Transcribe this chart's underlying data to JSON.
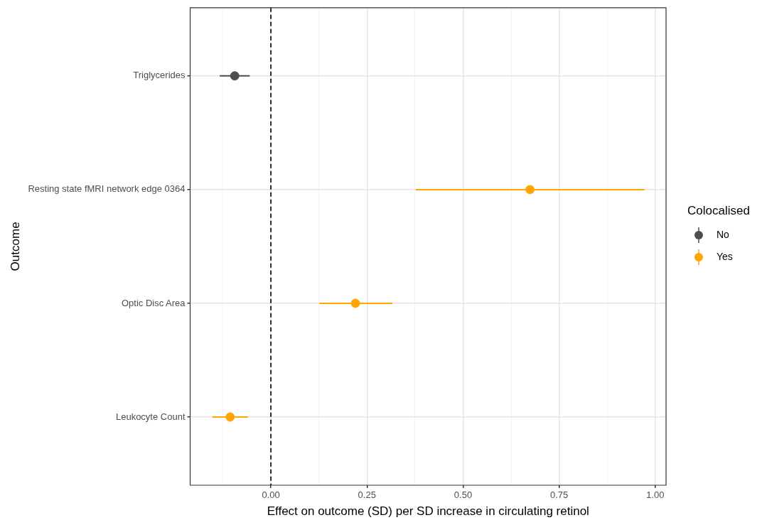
{
  "chart_data": {
    "type": "scatter",
    "orientation": "horizontal",
    "categories": [
      "Triglycerides",
      "Resting state fMRI network edge 0364",
      "Optic Disc Area",
      "Leukocyte Count"
    ],
    "series": [
      {
        "name": "No",
        "color": "#4d4d4d",
        "values": [
          -0.094,
          null,
          null,
          null
        ],
        "errors": [
          [
            -0.133,
            -0.055
          ],
          null,
          null,
          null
        ]
      },
      {
        "name": "Yes",
        "color": "#ffa500",
        "values": [
          null,
          0.674,
          0.22,
          -0.106
        ],
        "errors": [
          null,
          [
            0.377,
            0.972
          ],
          [
            0.126,
            0.316
          ],
          [
            -0.152,
            -0.06
          ]
        ]
      }
    ],
    "xlim": [
      -0.21,
      1.028
    ],
    "xticks": [
      {
        "value": -0.125,
        "label": null
      },
      "0.00",
      {
        "value": 0.125,
        "label": null
      },
      {
        "value": 0.25,
        "label": "0.25"
      },
      {
        "value": 0.375,
        "label": null
      },
      {
        "value": 0.5,
        "label": "0.50"
      },
      {
        "value": 0.625,
        "label": null
      },
      {
        "value": 0.75,
        "label": "0.75"
      },
      {
        "value": 0.875,
        "label": null
      },
      {
        "value": 1,
        "label": "1.00"
      }
    ],
    "xlabel": "Effect on outcome (SD) per SD increase in circulating retinol",
    "ylabel": "Outcome",
    "legend_title": "Colocalised",
    "legend": "right",
    "grid": true,
    "marker": "circle",
    "ref_lines": [
      {
        "axis": "x",
        "value": 0,
        "color": "#000000",
        "line_style": "dashed"
      }
    ]
  }
}
